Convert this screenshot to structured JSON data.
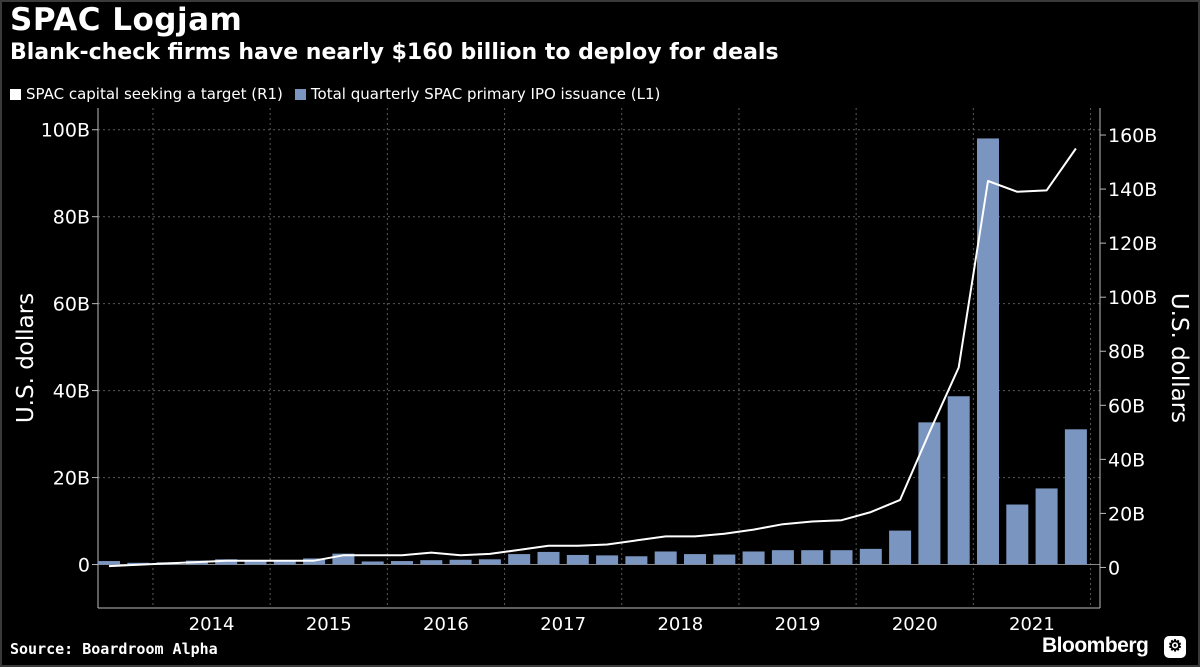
{
  "header": {
    "title": "SPAC Logjam",
    "subtitle": "Blank-check firms have nearly $160 billion to deploy for deals"
  },
  "legend": {
    "line_label": "SPAC capital seeking a target (R1)",
    "bar_label": "Total quarterly SPAC primary IPO issuance (L1)"
  },
  "footer": {
    "source": "Source: Boardroom Alpha",
    "brand": "Bloomberg",
    "brand_icon": "bloomberg-badge-icon"
  },
  "colors": {
    "background": "#000000",
    "bar": "#7a95bf",
    "line": "#ffffff",
    "grid": "#5a5a5a"
  },
  "chart_data": {
    "type": "bar",
    "grid": true,
    "legend_position": "top-left",
    "x_tick_labels": [
      "2014",
      "2015",
      "2016",
      "2017",
      "2018",
      "2019",
      "2020",
      "2021"
    ],
    "left_axis": {
      "label": "U.S. dollars",
      "ylim": [
        -10,
        105
      ],
      "ticks": [
        0,
        20,
        40,
        60,
        80,
        100
      ],
      "tick_labels": [
        "0",
        "20B",
        "40B",
        "60B",
        "80B",
        "100B"
      ]
    },
    "right_axis": {
      "label": "U.S. dollars",
      "ylim": [
        -15,
        170
      ],
      "ticks": [
        0,
        20,
        40,
        60,
        80,
        100,
        120,
        140,
        160
      ],
      "tick_labels": [
        "0",
        "20B",
        "40B",
        "60B",
        "80B",
        "100B",
        "120B",
        "140B",
        "160B"
      ]
    },
    "bar_series": {
      "name": "Total quarterly SPAC primary IPO issuance (L1)",
      "axis": "left",
      "values": [
        0.8,
        0.4,
        0.5,
        0.9,
        1.2,
        0.8,
        1.0,
        1.4,
        2.5,
        0.7,
        0.8,
        1.0,
        1.1,
        1.2,
        2.4,
        2.9,
        2.2,
        2.1,
        1.9,
        3.0,
        2.4,
        2.3,
        3.0,
        3.3,
        3.3,
        3.3,
        3.6,
        7.8,
        32.7,
        38.7,
        98.0,
        13.8,
        17.5,
        31.1
      ]
    },
    "line_series": {
      "name": "SPAC capital seeking a target (R1)",
      "axis": "right",
      "values": [
        0.5,
        1.0,
        1.5,
        2.0,
        2.5,
        2.5,
        2.5,
        2.5,
        4.5,
        4.5,
        4.5,
        5.5,
        4.5,
        5.0,
        6.5,
        8.0,
        8.0,
        8.5,
        10.0,
        11.5,
        11.5,
        12.5,
        14.0,
        16.0,
        17.0,
        17.5,
        20.5,
        25.0,
        50.0,
        74.0,
        143.0,
        139.0,
        139.5,
        155.0
      ]
    }
  }
}
